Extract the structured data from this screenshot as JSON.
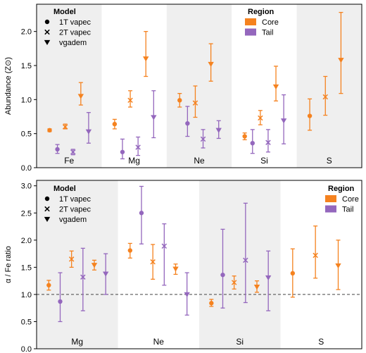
{
  "colors": {
    "core": "#F5821F",
    "tail": "#9467BD",
    "band": "#EFEFEF",
    "axis": "#000000",
    "refline": "#444444"
  },
  "chart_data": [
    {
      "type": "scatter",
      "ylabel": "Abundance (Z⊙)",
      "ylim": [
        0,
        2.4
      ],
      "yticks": [
        0.0,
        0.5,
        1.0,
        1.5,
        2.0
      ],
      "ytick_labels": [
        "0.0",
        "0.5",
        "1.0",
        "1.5",
        "2.0"
      ],
      "groups": [
        "Fe",
        "Mg",
        "Ne",
        "Si",
        "S"
      ],
      "shaded_groups": [
        "Fe",
        "Ne",
        "S"
      ],
      "legend_model": {
        "title": "Model",
        "entries": [
          {
            "marker": "circle",
            "label": "1T vapec"
          },
          {
            "marker": "x",
            "label": "2T vapec"
          },
          {
            "marker": "tri",
            "label": "vgadem"
          }
        ]
      },
      "legend_region": {
        "title": "Region",
        "entries": [
          {
            "color": "core",
            "label": "Core"
          },
          {
            "color": "tail",
            "label": "Tail"
          }
        ]
      },
      "points": [
        {
          "group": "Fe",
          "offset": 0,
          "model": "circle",
          "region": "core",
          "y": 0.55,
          "lo": 0.53,
          "hi": 0.57
        },
        {
          "group": "Fe",
          "offset": 1,
          "model": "circle",
          "region": "tail",
          "y": 0.27,
          "lo": 0.21,
          "hi": 0.34
        },
        {
          "group": "Fe",
          "offset": 2,
          "model": "x",
          "region": "core",
          "y": 0.6,
          "lo": 0.57,
          "hi": 0.64
        },
        {
          "group": "Fe",
          "offset": 3,
          "model": "x",
          "region": "tail",
          "y": 0.23,
          "lo": 0.19,
          "hi": 0.27
        },
        {
          "group": "Fe",
          "offset": 4,
          "model": "tri",
          "region": "core",
          "y": 1.05,
          "lo": 0.92,
          "hi": 1.25
        },
        {
          "group": "Fe",
          "offset": 5,
          "model": "tri",
          "region": "tail",
          "y": 0.53,
          "lo": 0.36,
          "hi": 0.81
        },
        {
          "group": "Mg",
          "offset": 0,
          "model": "circle",
          "region": "core",
          "y": 0.64,
          "lo": 0.57,
          "hi": 0.71
        },
        {
          "group": "Mg",
          "offset": 1,
          "model": "circle",
          "region": "tail",
          "y": 0.23,
          "lo": 0.13,
          "hi": 0.42
        },
        {
          "group": "Mg",
          "offset": 2,
          "model": "x",
          "region": "core",
          "y": 0.99,
          "lo": 0.89,
          "hi": 1.13
        },
        {
          "group": "Mg",
          "offset": 3,
          "model": "x",
          "region": "tail",
          "y": 0.3,
          "lo": 0.18,
          "hi": 0.45
        },
        {
          "group": "Mg",
          "offset": 4,
          "model": "tri",
          "region": "core",
          "y": 1.6,
          "lo": 1.34,
          "hi": 2.0
        },
        {
          "group": "Mg",
          "offset": 5,
          "model": "tri",
          "region": "tail",
          "y": 0.74,
          "lo": 0.44,
          "hi": 1.13
        },
        {
          "group": "Ne",
          "offset": 0,
          "model": "circle",
          "region": "core",
          "y": 0.99,
          "lo": 0.89,
          "hi": 1.09
        },
        {
          "group": "Ne",
          "offset": 1,
          "model": "circle",
          "region": "tail",
          "y": 0.65,
          "lo": 0.46,
          "hi": 0.9
        },
        {
          "group": "Ne",
          "offset": 2,
          "model": "x",
          "region": "core",
          "y": 0.95,
          "lo": 0.74,
          "hi": 1.2
        },
        {
          "group": "Ne",
          "offset": 3,
          "model": "x",
          "region": "tail",
          "y": 0.42,
          "lo": 0.29,
          "hi": 0.56
        },
        {
          "group": "Ne",
          "offset": 4,
          "model": "tri",
          "region": "core",
          "y": 1.52,
          "lo": 1.27,
          "hi": 1.82
        },
        {
          "group": "Ne",
          "offset": 5,
          "model": "tri",
          "region": "tail",
          "y": 0.55,
          "lo": 0.43,
          "hi": 0.69
        },
        {
          "group": "Si",
          "offset": 0,
          "model": "circle",
          "region": "core",
          "y": 0.46,
          "lo": 0.41,
          "hi": 0.51
        },
        {
          "group": "Si",
          "offset": 1,
          "model": "circle",
          "region": "tail",
          "y": 0.36,
          "lo": 0.21,
          "hi": 0.56
        },
        {
          "group": "Si",
          "offset": 2,
          "model": "x",
          "region": "core",
          "y": 0.73,
          "lo": 0.63,
          "hi": 0.84
        },
        {
          "group": "Si",
          "offset": 3,
          "model": "x",
          "region": "tail",
          "y": 0.37,
          "lo": 0.23,
          "hi": 0.56
        },
        {
          "group": "Si",
          "offset": 4,
          "model": "tri",
          "region": "core",
          "y": 1.19,
          "lo": 0.98,
          "hi": 1.49
        },
        {
          "group": "Si",
          "offset": 5,
          "model": "tri",
          "region": "tail",
          "y": 0.69,
          "lo": 0.35,
          "hi": 1.07
        },
        {
          "group": "S",
          "offset": 0,
          "model": "circle",
          "region": "core",
          "y": 0.76,
          "lo": 0.55,
          "hi": 1.01
        },
        {
          "group": "S",
          "offset": 2,
          "model": "x",
          "region": "core",
          "y": 1.04,
          "lo": 0.77,
          "hi": 1.34
        },
        {
          "group": "S",
          "offset": 4,
          "model": "tri",
          "region": "core",
          "y": 1.58,
          "lo": 1.09,
          "hi": 2.28
        }
      ]
    },
    {
      "type": "scatter",
      "ylabel": "α / Fe ratio",
      "ylim": [
        0,
        3.1
      ],
      "yticks": [
        0.0,
        0.5,
        1.0,
        1.5,
        2.0,
        2.5,
        3.0
      ],
      "ytick_labels": [
        "0.0",
        "0.5",
        "1.0",
        "1.5",
        "2.0",
        "2.5",
        "3.0"
      ],
      "groups": [
        "Mg",
        "Ne",
        "Si",
        "S"
      ],
      "shaded_groups": [
        "Mg",
        "Si"
      ],
      "reference_line": 1.0,
      "legend_model": {
        "title": "Model",
        "entries": [
          {
            "marker": "circle",
            "label": "1T vapec"
          },
          {
            "marker": "x",
            "label": "2T vapec"
          },
          {
            "marker": "tri",
            "label": "vgadem"
          }
        ]
      },
      "legend_region": {
        "title": "Region",
        "entries": [
          {
            "color": "core",
            "label": "Core"
          },
          {
            "color": "tail",
            "label": "Tail"
          }
        ]
      },
      "points": [
        {
          "group": "Mg",
          "offset": 0,
          "model": "circle",
          "region": "core",
          "y": 1.17,
          "lo": 1.08,
          "hi": 1.26
        },
        {
          "group": "Mg",
          "offset": 1,
          "model": "circle",
          "region": "tail",
          "y": 0.87,
          "lo": 0.5,
          "hi": 1.4
        },
        {
          "group": "Mg",
          "offset": 2,
          "model": "x",
          "region": "core",
          "y": 1.65,
          "lo": 1.5,
          "hi": 1.8
        },
        {
          "group": "Mg",
          "offset": 3,
          "model": "x",
          "region": "tail",
          "y": 1.32,
          "lo": 0.7,
          "hi": 1.85
        },
        {
          "group": "Mg",
          "offset": 4,
          "model": "tri",
          "region": "core",
          "y": 1.54,
          "lo": 1.45,
          "hi": 1.63
        },
        {
          "group": "Mg",
          "offset": 5,
          "model": "tri",
          "region": "tail",
          "y": 1.38,
          "lo": 1.0,
          "hi": 1.75
        },
        {
          "group": "Ne",
          "offset": 0,
          "model": "circle",
          "region": "core",
          "y": 1.81,
          "lo": 1.67,
          "hi": 1.94
        },
        {
          "group": "Ne",
          "offset": 1,
          "model": "circle",
          "region": "tail",
          "y": 2.5,
          "lo": 1.93,
          "hi": 2.99
        },
        {
          "group": "Ne",
          "offset": 2,
          "model": "x",
          "region": "core",
          "y": 1.6,
          "lo": 1.28,
          "hi": 1.92
        },
        {
          "group": "Ne",
          "offset": 3,
          "model": "x",
          "region": "tail",
          "y": 1.89,
          "lo": 1.17,
          "hi": 2.3
        },
        {
          "group": "Ne",
          "offset": 4,
          "model": "tri",
          "region": "core",
          "y": 1.47,
          "lo": 1.37,
          "hi": 1.56
        },
        {
          "group": "Ne",
          "offset": 5,
          "model": "tri",
          "region": "tail",
          "y": 1.0,
          "lo": 0.62,
          "hi": 1.4
        },
        {
          "group": "Si",
          "offset": 0,
          "model": "circle",
          "region": "core",
          "y": 0.84,
          "lo": 0.78,
          "hi": 0.91
        },
        {
          "group": "Si",
          "offset": 1,
          "model": "circle",
          "region": "tail",
          "y": 1.36,
          "lo": 0.75,
          "hi": 2.2
        },
        {
          "group": "Si",
          "offset": 2,
          "model": "x",
          "region": "core",
          "y": 1.22,
          "lo": 1.1,
          "hi": 1.34
        },
        {
          "group": "Si",
          "offset": 3,
          "model": "x",
          "region": "tail",
          "y": 1.63,
          "lo": 0.85,
          "hi": 2.68
        },
        {
          "group": "Si",
          "offset": 4,
          "model": "tri",
          "region": "core",
          "y": 1.14,
          "lo": 1.04,
          "hi": 1.25
        },
        {
          "group": "Si",
          "offset": 5,
          "model": "tri",
          "region": "tail",
          "y": 1.31,
          "lo": 0.7,
          "hi": 1.8
        },
        {
          "group": "S",
          "offset": 0,
          "model": "circle",
          "region": "core",
          "y": 1.39,
          "lo": 0.95,
          "hi": 1.84
        },
        {
          "group": "S",
          "offset": 2,
          "model": "x",
          "region": "core",
          "y": 1.72,
          "lo": 1.3,
          "hi": 2.26
        },
        {
          "group": "S",
          "offset": 4,
          "model": "tri",
          "region": "core",
          "y": 1.53,
          "lo": 1.09,
          "hi": 2.0
        }
      ]
    }
  ]
}
